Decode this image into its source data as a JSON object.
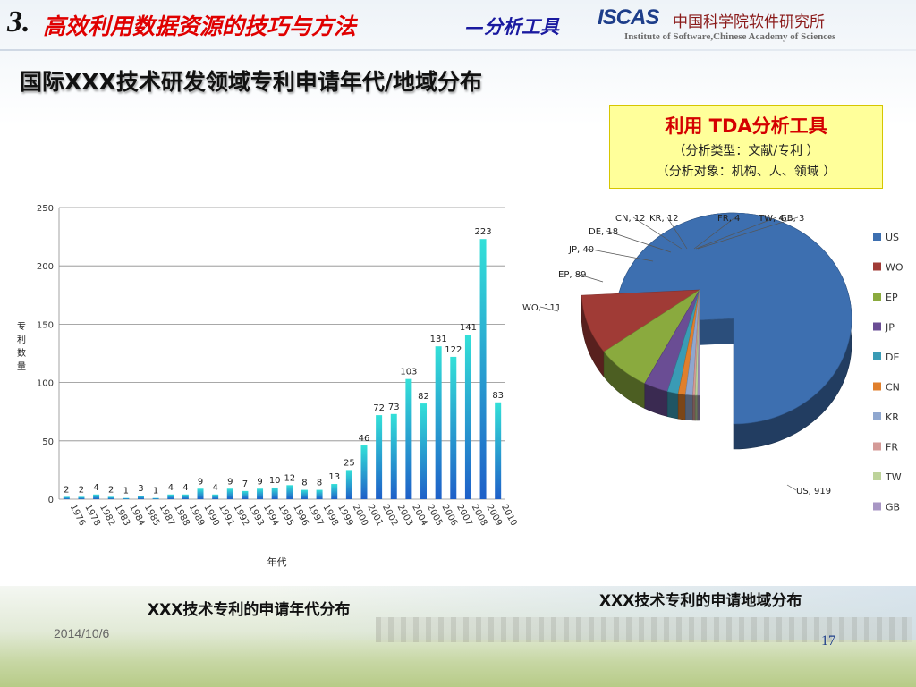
{
  "header": {
    "number": "3.",
    "title": "高效利用数据资源的技巧与方法",
    "subtitle": "—分析工具",
    "logo_text": "ISCAS",
    "org_cn": "中国科学院软件研究所",
    "org_en": "Institute of Software,Chinese Academy of Sciences"
  },
  "main_title": "国际XXX技术研发领域专利申请年代/地域分布",
  "tool_box": {
    "title": "利用   TDA分析工具",
    "line1": "（分析类型：文献/专利 ）",
    "line2": "（分析对象：机构、人、领域   ）"
  },
  "captions": {
    "bar": "XXX技术专利的申请年代分布",
    "pie": "XXX技术专利的申请地域分布"
  },
  "footer": {
    "date": "2014/10/6",
    "page": "17"
  },
  "colors": {
    "title_red": "#e00000",
    "subtitle_blue": "#1a1aa0",
    "bar_top": "#33e0d8",
    "bar_bottom": "#1e5fc8",
    "box_fill": "#ffff9a"
  },
  "chart_data": [
    {
      "type": "bar",
      "categories": [
        "1976",
        "1978",
        "1982",
        "1983",
        "1984",
        "1985",
        "1987",
        "1988",
        "1989",
        "1990",
        "1991",
        "1992",
        "1993",
        "1994",
        "1995",
        "1996",
        "1997",
        "1998",
        "1999",
        "2000",
        "2001",
        "2002",
        "2003",
        "2004",
        "2005",
        "2006",
        "2007",
        "2008",
        "2009",
        "2010"
      ],
      "values": [
        2,
        2,
        4,
        2,
        1,
        3,
        1,
        4,
        4,
        9,
        4,
        9,
        7,
        9,
        10,
        12,
        8,
        8,
        13,
        25,
        46,
        72,
        73,
        103,
        82,
        131,
        122,
        141,
        223,
        83
      ],
      "xlabel": "年代",
      "ylabel": "专利数量",
      "ylim": [
        0,
        250
      ],
      "yticks": [
        0,
        50,
        100,
        150,
        200,
        250
      ],
      "grid": true,
      "data_labels": true
    },
    {
      "type": "pie",
      "labels": [
        "US",
        "WO",
        "EP",
        "JP",
        "DE",
        "CN",
        "KR",
        "FR",
        "TW",
        "GB"
      ],
      "values": [
        919,
        111,
        89,
        40,
        18,
        12,
        12,
        4,
        4,
        3
      ],
      "slice_labels": [
        "US, 919",
        "WO, 111",
        "EP, 89",
        "JP, 40",
        "DE, 18",
        "CN, 12",
        "KR, 12",
        "FR, 4",
        "TW, 4",
        "GB, 3"
      ],
      "colors": [
        "#3d6fb0",
        "#a03b36",
        "#8aaa3e",
        "#6a4d94",
        "#3a9bb5",
        "#e07f2c",
        "#8fa7cf",
        "#d49a97",
        "#bdd39a",
        "#a896c4"
      ],
      "legend_position": "right"
    }
  ]
}
